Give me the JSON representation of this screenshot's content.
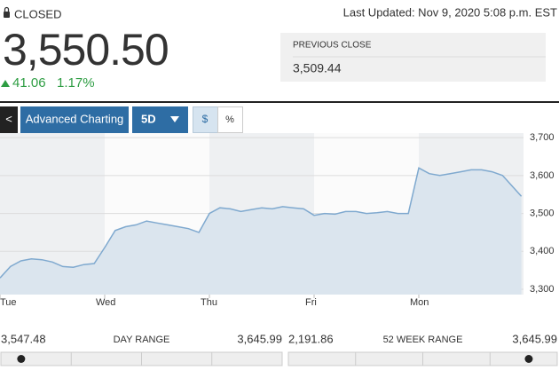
{
  "header": {
    "status": "CLOSED",
    "last_updated": "Last Updated: Nov 9, 2020 5:08 p.m. EST",
    "price": "3,550.50",
    "change": "41.06",
    "change_percent": "1.17%",
    "previous_close_label": "PREVIOUS CLOSE",
    "previous_close": "3,509.44"
  },
  "toolbar": {
    "back": "<",
    "advanced": "Advanced Charting",
    "range": "5D",
    "dollar": "$",
    "percent": "%"
  },
  "chart_data": {
    "type": "area",
    "color": "#7fa9cf",
    "fill": "#dbe5ee",
    "grid": true,
    "xlim": [
      0,
      5
    ],
    "xticks": [
      {
        "value": 0,
        "label": "Tue"
      },
      {
        "value": 1,
        "label": "Wed"
      },
      {
        "value": 2,
        "label": "Thu"
      },
      {
        "value": 3,
        "label": "Fri"
      },
      {
        "value": 4,
        "label": "Mon"
      }
    ],
    "ylim": [
      3286,
      3712
    ],
    "yticks": [
      {
        "value": 3300,
        "label": "3,300"
      },
      {
        "value": 3400,
        "label": "3,400"
      },
      {
        "value": 3500,
        "label": "3,500"
      },
      {
        "value": 3600,
        "label": "3,600"
      },
      {
        "value": 3700,
        "label": "3,700"
      }
    ],
    "x": [
      0,
      0.1,
      0.2,
      0.3,
      0.4,
      0.5,
      0.6,
      0.7,
      0.8,
      0.9,
      1,
      1.1,
      1.2,
      1.3,
      1.4,
      1.5,
      1.6,
      1.7,
      1.8,
      1.9,
      2,
      2.1,
      2.2,
      2.3,
      2.4,
      2.5,
      2.6,
      2.7,
      2.8,
      2.9,
      3,
      3.1,
      3.2,
      3.3,
      3.4,
      3.5,
      3.6,
      3.7,
      3.8,
      3.9,
      4,
      4.1,
      4.2,
      4.3,
      4.4,
      4.5,
      4.6,
      4.7,
      4.8,
      4.98
    ],
    "values": [
      3330,
      3360,
      3375,
      3380,
      3378,
      3372,
      3360,
      3358,
      3365,
      3368,
      3410,
      3455,
      3465,
      3470,
      3480,
      3475,
      3470,
      3465,
      3460,
      3450,
      3500,
      3515,
      3512,
      3505,
      3510,
      3515,
      3512,
      3518,
      3515,
      3512,
      3495,
      3500,
      3498,
      3505,
      3505,
      3500,
      3502,
      3505,
      3500,
      3500,
      3620,
      3605,
      3600,
      3605,
      3610,
      3615,
      3615,
      3610,
      3600,
      3545
    ]
  },
  "ranges": {
    "current": 3550.5,
    "day": {
      "label": "DAY RANGE",
      "low": 3547.48,
      "low_label": "3,547.48",
      "high": 3645.99,
      "high_label": "3,645.99"
    },
    "week52": {
      "label": "52 WEEK RANGE",
      "low": 2191.86,
      "low_label": "2,191.86",
      "high": 3645.99,
      "high_label": "3,645.99"
    }
  }
}
